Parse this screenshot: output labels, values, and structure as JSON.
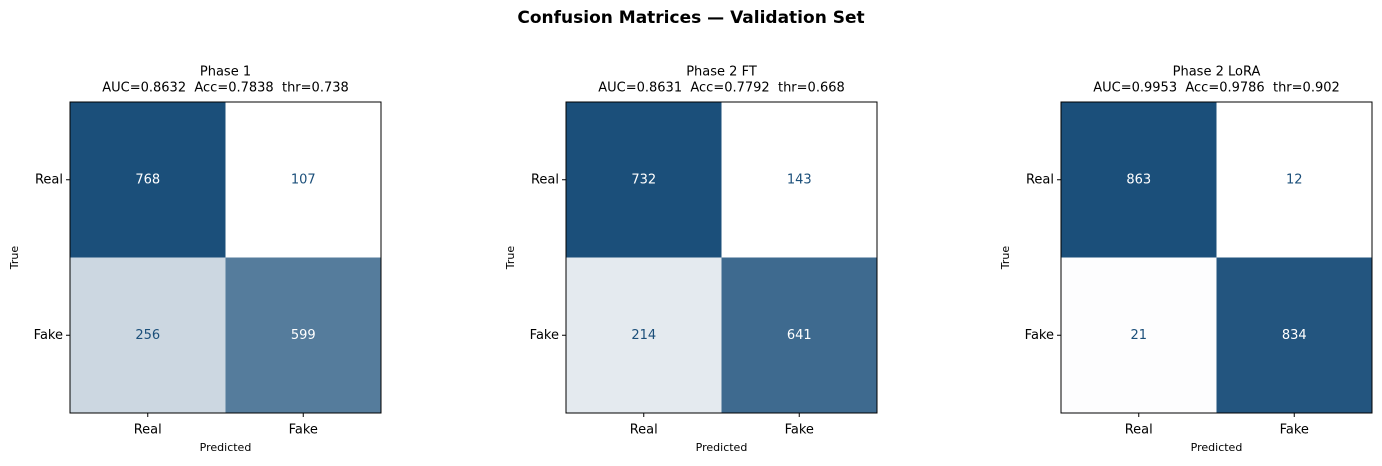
{
  "title": "Confusion Matrices — Validation Set",
  "chart_data": [
    {
      "type": "heatmap",
      "title": "Phase 1",
      "subtitle": "AUC=0.8632  Acc=0.7838  thr=0.738",
      "x_label": "Predicted",
      "y_label": "True",
      "x_categories": [
        "Real",
        "Fake"
      ],
      "y_categories": [
        "Real",
        "Fake"
      ],
      "values": [
        [
          768,
          107
        ],
        [
          256,
          599
        ]
      ],
      "colormap": [
        "#ffffff",
        "#1b4f7a"
      ]
    },
    {
      "type": "heatmap",
      "title": "Phase 2 FT",
      "subtitle": "AUC=0.8631  Acc=0.7792  thr=0.668",
      "x_label": "Predicted",
      "y_label": "True",
      "x_categories": [
        "Real",
        "Fake"
      ],
      "y_categories": [
        "Real",
        "Fake"
      ],
      "values": [
        [
          732,
          143
        ],
        [
          214,
          641
        ]
      ],
      "colormap": [
        "#ffffff",
        "#1b4f7a"
      ]
    },
    {
      "type": "heatmap",
      "title": "Phase 2 LoRA",
      "subtitle": "AUC=0.9953  Acc=0.9786  thr=0.902",
      "x_label": "Predicted",
      "y_label": "True",
      "x_categories": [
        "Real",
        "Fake"
      ],
      "y_categories": [
        "Real",
        "Fake"
      ],
      "values": [
        [
          863,
          12
        ],
        [
          21,
          834
        ]
      ],
      "colormap": [
        "#ffffff",
        "#1b4f7a"
      ]
    }
  ]
}
